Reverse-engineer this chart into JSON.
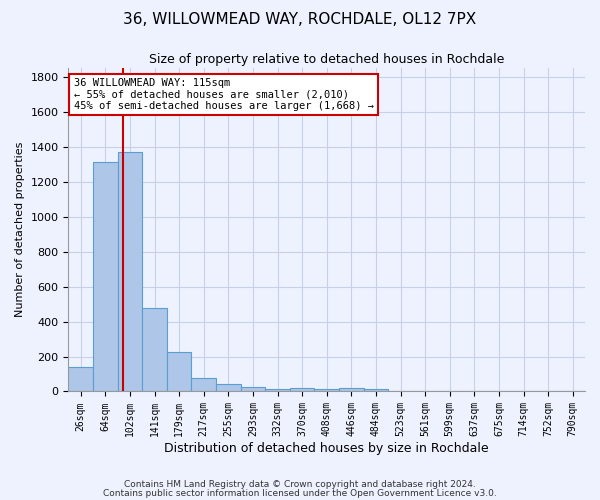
{
  "title_line1": "36, WILLOWMEAD WAY, ROCHDALE, OL12 7PX",
  "title_line2": "Size of property relative to detached houses in Rochdale",
  "xlabel": "Distribution of detached houses by size in Rochdale",
  "ylabel": "Number of detached properties",
  "bar_labels": [
    "26sqm",
    "64sqm",
    "102sqm",
    "141sqm",
    "179sqm",
    "217sqm",
    "255sqm",
    "293sqm",
    "332sqm",
    "370sqm",
    "408sqm",
    "446sqm",
    "484sqm",
    "523sqm",
    "561sqm",
    "599sqm",
    "637sqm",
    "675sqm",
    "714sqm",
    "752sqm",
    "790sqm"
  ],
  "bar_values": [
    140,
    1310,
    1370,
    480,
    225,
    75,
    40,
    25,
    15,
    20,
    15,
    20,
    15,
    0,
    0,
    0,
    0,
    0,
    0,
    0,
    0
  ],
  "bar_color": "#aec6e8",
  "bar_edge_color": "#5a9fd4",
  "ylim": [
    0,
    1850
  ],
  "yticks": [
    0,
    200,
    400,
    600,
    800,
    1000,
    1200,
    1400,
    1600,
    1800
  ],
  "property_line_x": 1.72,
  "annotation_text_line1": "36 WILLOWMEAD WAY: 115sqm",
  "annotation_text_line2": "← 55% of detached houses are smaller (2,010)",
  "annotation_text_line3": "45% of semi-detached houses are larger (1,668) →",
  "annotation_box_color": "#ffffff",
  "annotation_box_edge_color": "#cc0000",
  "line_color": "#cc0000",
  "footer_line1": "Contains HM Land Registry data © Crown copyright and database right 2024.",
  "footer_line2": "Contains public sector information licensed under the Open Government Licence v3.0.",
  "background_color": "#eef2ff",
  "grid_color": "#c8cfe8"
}
